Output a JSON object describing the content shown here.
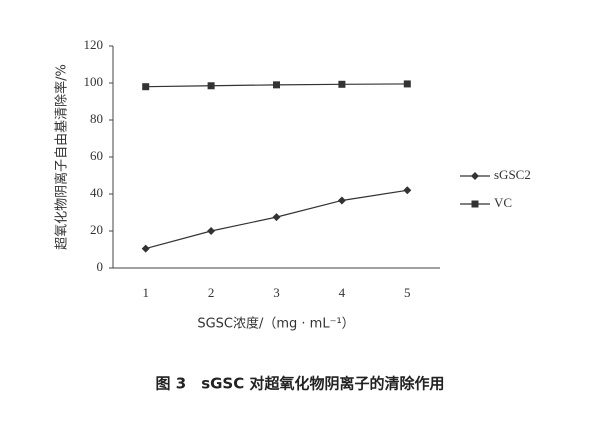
{
  "chart_data": {
    "type": "line",
    "caption": "图 3　sGSC 对超氧化物阴离子的清除作用",
    "x_label": "SGSC浓度/（mg · mL⁻¹）",
    "y_label": "超氧化物阴离子自由基清除率/%",
    "categories": [
      "1",
      "2",
      "3",
      "4",
      "5"
    ],
    "series": [
      {
        "name": "sGSC2",
        "color": "#333333",
        "marker": "diamond",
        "values": [
          10.5,
          20,
          27.5,
          36.5,
          42
        ]
      },
      {
        "name": "VC",
        "color": "#333333",
        "marker": "square",
        "values": [
          98,
          98.5,
          99,
          99.3,
          99.5
        ]
      }
    ],
    "ylim": [
      0,
      120
    ],
    "yticks": [
      0,
      20,
      40,
      60,
      80,
      100,
      120
    ],
    "grid": false
  }
}
